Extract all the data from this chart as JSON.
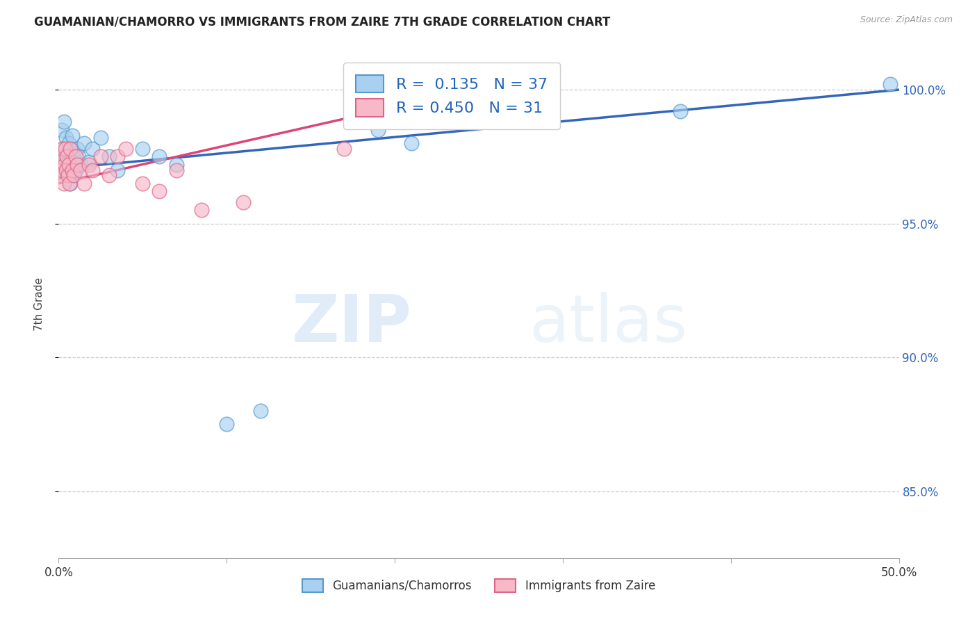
{
  "title": "GUAMANIAN/CHAMORRO VS IMMIGRANTS FROM ZAIRE 7TH GRADE CORRELATION CHART",
  "source": "Source: ZipAtlas.com",
  "ylabel": "7th Grade",
  "xlim": [
    0.0,
    50.0
  ],
  "ylim": [
    82.5,
    101.5
  ],
  "yticks": [
    85.0,
    90.0,
    95.0,
    100.0
  ],
  "ytick_labels": [
    "85.0%",
    "90.0%",
    "95.0%",
    "100.0%"
  ],
  "xticks": [
    0.0,
    10.0,
    20.0,
    30.0,
    40.0,
    50.0
  ],
  "xtick_labels": [
    "0.0%",
    "",
    "",
    "",
    "",
    "50.0%"
  ],
  "blue_label": "Guamanians/Chamorros",
  "pink_label": "Immigrants from Zaire",
  "blue_R": 0.135,
  "blue_N": 37,
  "pink_R": 0.45,
  "pink_N": 31,
  "blue_color": "#a8d0f0",
  "pink_color": "#f7b8c8",
  "blue_edge_color": "#5599cc",
  "pink_edge_color": "#dd6688",
  "blue_line_color": "#3366bb",
  "pink_line_color": "#dd4477",
  "watermark_zip": "ZIP",
  "watermark_atlas": "atlas",
  "blue_x": [
    0.15,
    0.2,
    0.25,
    0.3,
    0.35,
    0.4,
    0.45,
    0.5,
    0.55,
    0.6,
    0.65,
    0.7,
    0.75,
    0.8,
    0.85,
    0.9,
    0.95,
    1.0,
    1.1,
    1.2,
    1.3,
    1.5,
    1.8,
    2.0,
    2.5,
    3.0,
    3.5,
    5.0,
    6.0,
    7.0,
    10.0,
    12.0,
    19.0,
    21.0,
    25.0,
    37.0,
    49.5
  ],
  "blue_y": [
    97.2,
    98.5,
    97.8,
    98.8,
    97.0,
    97.5,
    98.2,
    96.8,
    97.6,
    98.0,
    97.3,
    96.5,
    97.8,
    98.3,
    97.5,
    96.8,
    97.2,
    97.0,
    97.8,
    97.5,
    97.2,
    98.0,
    97.3,
    97.8,
    98.2,
    97.5,
    97.0,
    97.8,
    97.5,
    97.2,
    87.5,
    88.0,
    98.5,
    98.0,
    98.8,
    99.2,
    100.2
  ],
  "pink_x": [
    0.1,
    0.15,
    0.2,
    0.25,
    0.3,
    0.35,
    0.4,
    0.45,
    0.5,
    0.55,
    0.6,
    0.65,
    0.7,
    0.8,
    0.9,
    1.0,
    1.1,
    1.3,
    1.5,
    1.8,
    2.0,
    2.5,
    3.0,
    3.5,
    4.0,
    5.0,
    6.0,
    7.0,
    8.5,
    11.0,
    17.0
  ],
  "pink_y": [
    97.5,
    96.8,
    97.0,
    97.8,
    96.5,
    97.2,
    97.8,
    97.0,
    97.5,
    96.8,
    97.2,
    96.5,
    97.8,
    97.0,
    96.8,
    97.5,
    97.2,
    97.0,
    96.5,
    97.2,
    97.0,
    97.5,
    96.8,
    97.5,
    97.8,
    96.5,
    96.2,
    97.0,
    95.5,
    95.8,
    97.8
  ],
  "blue_line_x0": 0.0,
  "blue_line_y0": 97.05,
  "blue_line_x1": 50.0,
  "blue_line_y1": 100.0,
  "pink_line_x0": 0.0,
  "pink_line_y0": 96.5,
  "pink_line_x1": 19.0,
  "pink_line_y1": 99.2
}
